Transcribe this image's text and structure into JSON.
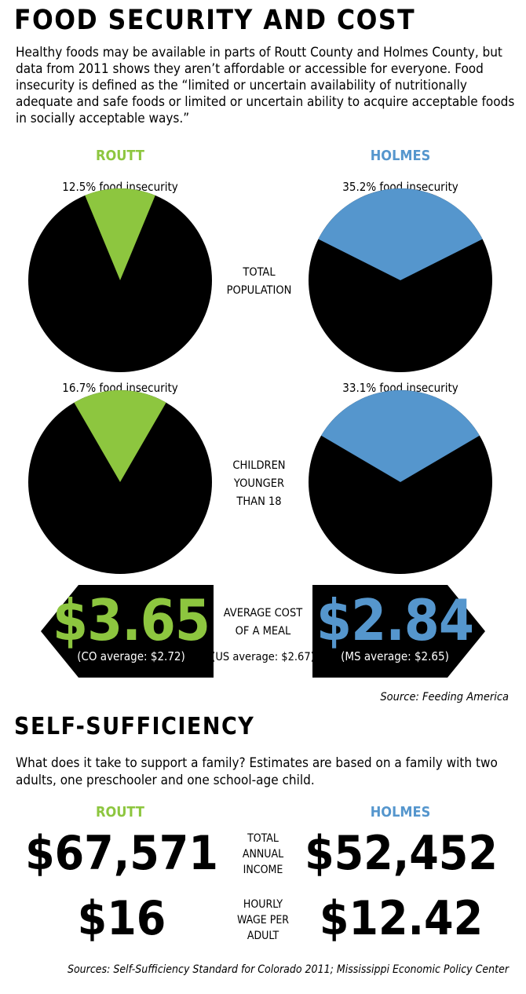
{
  "section1": {
    "title": "FOOD SECURITY AND COST",
    "intro": "Healthy foods may be available in parts of Routt County and Holmes County, but data from 2011 shows they aren’t affordable or accessible for everyone. Food insecurity is defined as the “limited or uncertain availability of nutritionally adequate and safe foods or limited or uncertain ability to acquire acceptable foods in socially acceptable ways.”",
    "routt_header": "ROUTT",
    "holmes_header": "HOLMES",
    "source": "Source: Feeding America"
  },
  "chart_data": [
    {
      "type": "pie",
      "county": "ROUTT",
      "category": "TOTAL POPULATION",
      "label": "12.5% food insecurity",
      "values": [
        12.5,
        87.5
      ],
      "color": "#8dc63f"
    },
    {
      "type": "pie",
      "county": "HOLMES",
      "category": "TOTAL POPULATION",
      "label": "35.2% food insecurity",
      "values": [
        35.2,
        64.8
      ],
      "color": "#5596cd"
    },
    {
      "type": "pie",
      "county": "ROUTT",
      "category": "CHILDREN YOUNGER THAN 18",
      "label": "16.7% food insecurity",
      "values": [
        16.7,
        83.3
      ],
      "color": "#8dc63f"
    },
    {
      "type": "pie",
      "county": "HOLMES",
      "category": "CHILDREN YOUNGER THAN 18",
      "label": "33.1% food insecurity",
      "values": [
        33.1,
        66.9
      ],
      "color": "#5596cd"
    }
  ],
  "rows": {
    "total_population": [
      "TOTAL",
      "POPULATION"
    ],
    "children": [
      "CHILDREN",
      "YOUNGER",
      "THAN 18"
    ]
  },
  "meal_cost": {
    "label": [
      "AVERAGE COST",
      "OF A MEAL"
    ],
    "us_average": "(US average: $2.67)",
    "routt": {
      "value": "$3.65",
      "sub": "(CO average: $2.72)"
    },
    "holmes": {
      "value": "$2.84",
      "sub": "(MS average: $2.65)"
    }
  },
  "section2": {
    "title": "SELF-SUFFICIENCY",
    "intro": "What does it take to support a family? Estimates are based on a family with two adults, one preschooler and one school-age child.",
    "routt_header": "ROUTT",
    "holmes_header": "HOLMES",
    "income_label": [
      "TOTAL",
      "ANNUAL",
      "INCOME"
    ],
    "wage_label": [
      "HOURLY",
      "WAGE PER",
      "ADULT"
    ],
    "routt_income": "$67,571",
    "holmes_income": "$52,452",
    "routt_wage": "$16",
    "holmes_wage": "$12.42",
    "source": "Sources: Self-Sufficiency Standard for Colorado 2011; Mississippi Economic Policy Center"
  },
  "colors": {
    "routt": "#8dc63f",
    "holmes": "#5596cd",
    "pie_base": "#000000"
  }
}
